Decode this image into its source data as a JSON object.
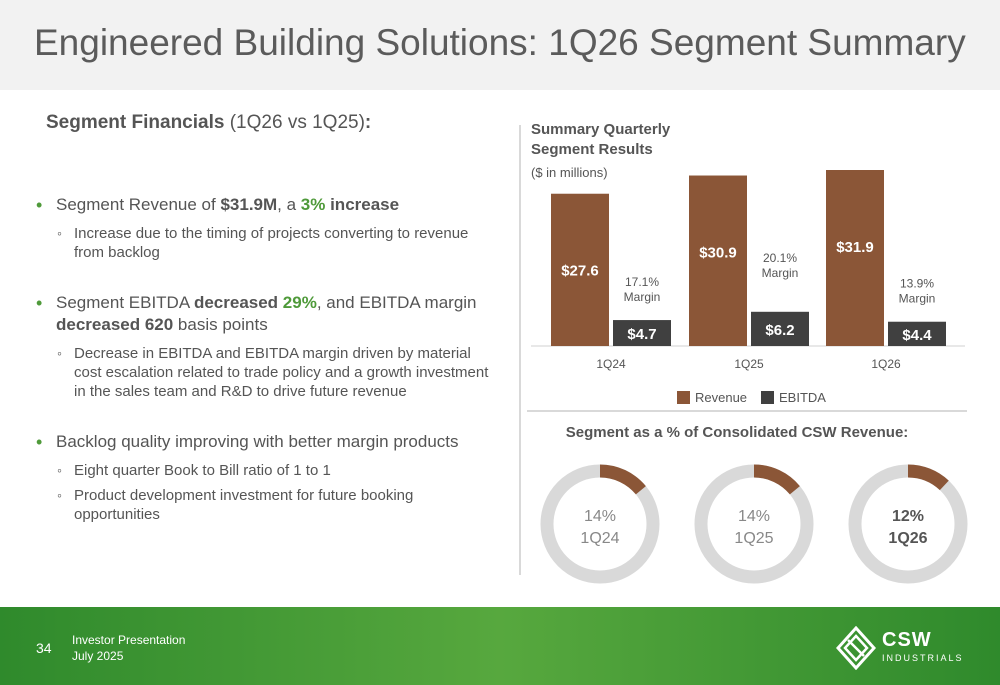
{
  "header": {
    "title": "Engineered Building Solutions: 1Q26 Segment Summary"
  },
  "left": {
    "heading_bold": "Segment Financials",
    "heading_rest": " (1Q26 vs 1Q25)",
    "heading_colon": ":",
    "bullets": [
      {
        "parts": [
          {
            "t": "Segment Revenue of ",
            "s": "n"
          },
          {
            "t": "$31.9M",
            "s": "b"
          },
          {
            "t": ", a ",
            "s": "n"
          },
          {
            "t": "3%",
            "s": "g"
          },
          {
            "t": " increase",
            "s": "b"
          }
        ],
        "subs": [
          "Increase due to the timing of projects converting to revenue from backlog"
        ]
      },
      {
        "parts": [
          {
            "t": "Segment EBITDA ",
            "s": "n"
          },
          {
            "t": "decreased ",
            "s": "b"
          },
          {
            "t": "29%",
            "s": "g"
          },
          {
            "t": ", and EBITDA margin ",
            "s": "n"
          },
          {
            "t": "decreased 620",
            "s": "b"
          },
          {
            "t": " basis points",
            "s": "n"
          }
        ],
        "subs": [
          "Decrease in EBITDA and EBITDA margin driven by material cost escalation related to trade policy and a growth investment in the sales team and R&D to drive future revenue"
        ]
      },
      {
        "parts": [
          {
            "t": "Backlog quality improving with better margin products",
            "s": "n"
          }
        ],
        "subs": [
          "Eight quarter Book to Bill ratio of 1 to 1",
          "Product development investment for future booking opportunities"
        ]
      }
    ]
  },
  "chart_title_line1": "Summary Quarterly",
  "chart_title_line2": "Segment Results",
  "chart_units": "($ in millions)",
  "chart_data": {
    "type": "bar",
    "title": "Summary Quarterly Segment Results",
    "subtitle": "($ in millions)",
    "categories": [
      "1Q24",
      "1Q25",
      "1Q26"
    ],
    "series": [
      {
        "name": "Revenue",
        "values": [
          27.6,
          30.9,
          31.9
        ],
        "labels": [
          "$27.6",
          "$30.9",
          "$31.9"
        ],
        "color": "#8b5637"
      },
      {
        "name": "EBITDA",
        "values": [
          4.7,
          6.2,
          4.4
        ],
        "labels": [
          "$4.7",
          "$6.2",
          "$4.4"
        ],
        "color": "#404040"
      }
    ],
    "margins": [
      {
        "line1": "17.1%",
        "line2": "Margin"
      },
      {
        "line1": "20.1%",
        "line2": "Margin"
      },
      {
        "line1": "13.9%",
        "line2": "Margin"
      }
    ],
    "legend": "bottom",
    "grid": false,
    "ylim": [
      0,
      31.9
    ]
  },
  "donut_title": "Segment as a % of Consolidated CSW Revenue:",
  "donuts": [
    {
      "pct_label": "14%",
      "period": "1Q24",
      "value": 0.14,
      "bold": false
    },
    {
      "pct_label": "14%",
      "period": "1Q25",
      "value": 0.14,
      "bold": false
    },
    {
      "pct_label": "12%",
      "period": "1Q26",
      "value": 0.12,
      "bold": true
    }
  ],
  "colors": {
    "accent_green": "#4f9a3a",
    "revenue": "#8b5637",
    "ebitda": "#404040",
    "ring": "#d9d9d9"
  },
  "footer": {
    "page": "34",
    "line1": "Investor Presentation",
    "line2": "July 2025",
    "logo_name": "CSW",
    "logo_sub": "INDUSTRIALS"
  }
}
